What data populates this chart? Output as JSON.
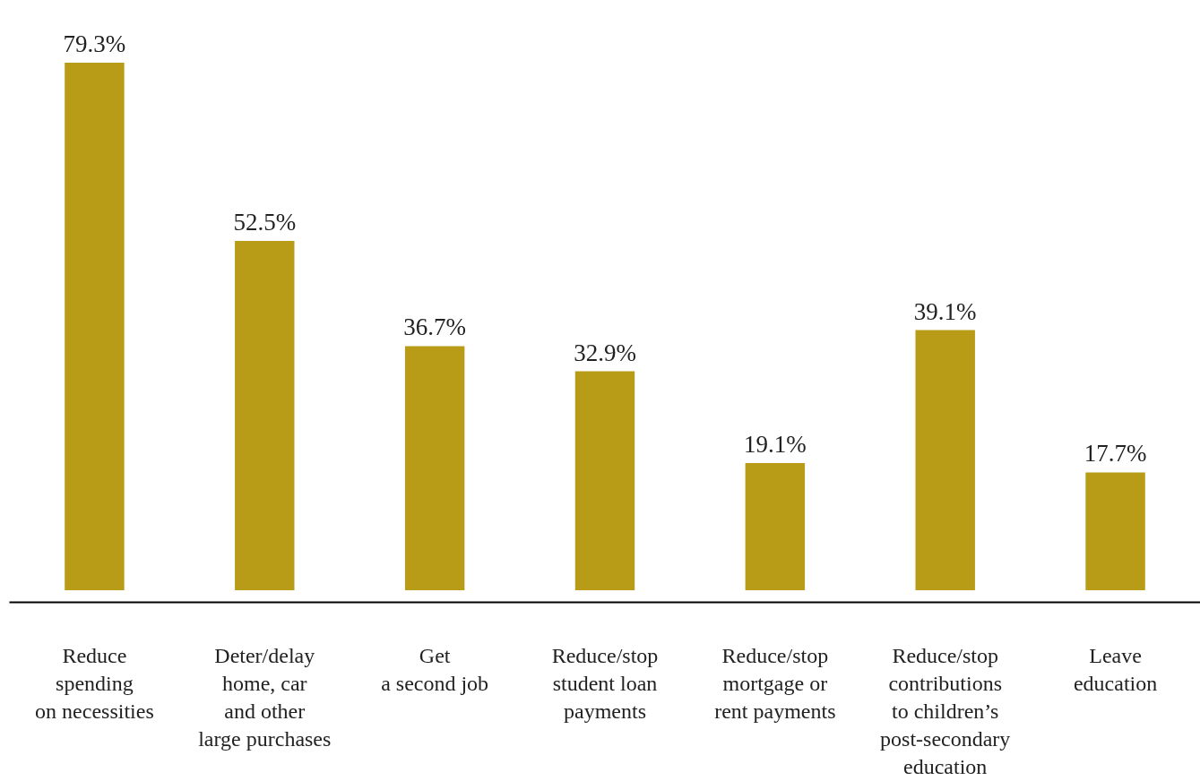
{
  "chart_data": {
    "type": "bar",
    "categories": [
      "Reduce\nspending\non necessities",
      "Deter/delay\nhome, car\nand other\nlarge purchases",
      "Get\na second job",
      "Reduce/stop\nstudent loan\npayments",
      "Reduce/stop\nmortgage or\nrent payments",
      "Reduce/stop\ncontributions\nto children’s\npost-secondary\neducation",
      "Leave\neducation"
    ],
    "values": [
      79.3,
      52.5,
      36.7,
      32.9,
      19.1,
      39.1,
      17.7
    ],
    "value_labels": [
      "79.3%",
      "52.5%",
      "36.7%",
      "32.9%",
      "19.1%",
      "39.1%",
      "17.7%"
    ],
    "color": "#b89c18",
    "grid": false,
    "tick_labels": "x"
  }
}
